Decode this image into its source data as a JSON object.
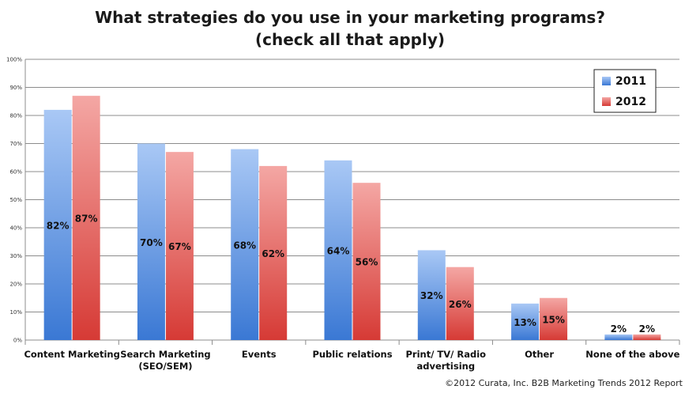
{
  "chart_data": {
    "type": "bar",
    "title": [
      "What strategies do you use in your marketing programs?",
      "(check all that apply)"
    ],
    "categories": [
      [
        "Content Marketing"
      ],
      [
        "Search Marketing",
        "(SEO/SEM)"
      ],
      [
        "Events"
      ],
      [
        "Public relations"
      ],
      [
        "Print/ TV/ Radio",
        "advertising"
      ],
      [
        "Other"
      ],
      [
        "None of the above"
      ]
    ],
    "series": [
      {
        "name": "2011",
        "values": [
          82,
          70,
          68,
          64,
          32,
          13,
          2
        ],
        "labels": [
          "82%",
          "70%",
          "68%",
          "64%",
          "32%",
          "13%",
          "2%"
        ],
        "color_top": "#a9c8f5",
        "color_bottom": "#3a78d4"
      },
      {
        "name": "2012",
        "values": [
          87,
          67,
          62,
          56,
          26,
          15,
          2
        ],
        "labels": [
          "87%",
          "67%",
          "62%",
          "56%",
          "26%",
          "15%",
          "2%"
        ],
        "color_top": "#f4a7a4",
        "color_bottom": "#d63a35"
      }
    ],
    "yticks": [
      "0%",
      "10%",
      "20%",
      "30%",
      "40%",
      "50%",
      "60%",
      "70%",
      "80%",
      "90%",
      "100%"
    ],
    "ylim": [
      0,
      100
    ],
    "grid": true,
    "legend_position": "top-right"
  },
  "footer": "©2012 Curata, Inc. B2B Marketing Trends 2012 Report"
}
